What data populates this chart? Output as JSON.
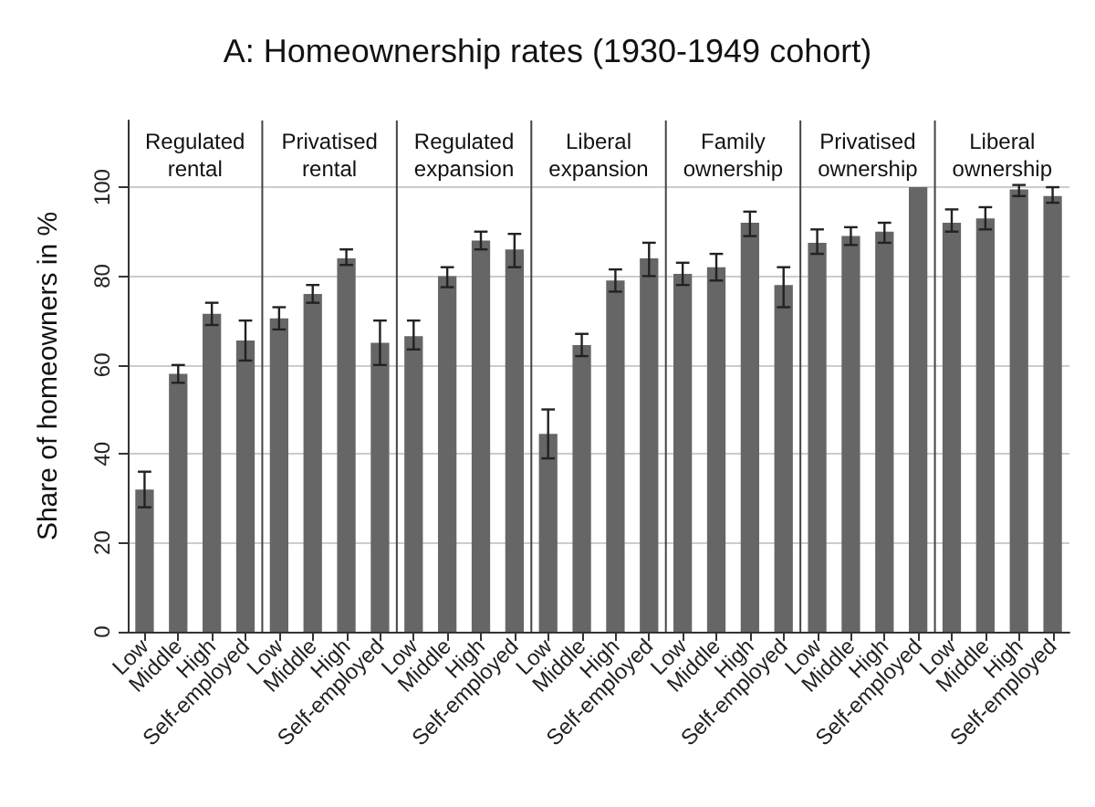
{
  "chart_data": {
    "type": "bar",
    "title": "A: Homeownership rates (1930-1949 cohort)",
    "ylabel": "Share of homeowners in %",
    "categories": [
      "Low",
      "Middle",
      "High",
      "Self-employed",
      "Low",
      "Middle",
      "High",
      "Self-employed",
      "Low",
      "Middle",
      "High",
      "Self-employed",
      "Low",
      "Middle",
      "High",
      "Self-employed",
      "Low",
      "Middle",
      "High",
      "Self-employed",
      "Low",
      "Middle",
      "High",
      "Self-employed",
      "Low",
      "Middle",
      "High",
      "Self-employed"
    ],
    "values": [
      32,
      58,
      71.5,
      65.5,
      70.5,
      76,
      84,
      65,
      66.5,
      80,
      88,
      86,
      44.5,
      64.5,
      79,
      84,
      80.5,
      82,
      92,
      78,
      87.5,
      89,
      90,
      100,
      92,
      93,
      99.5,
      98
    ],
    "errors": [
      [
        28,
        36
      ],
      [
        56,
        60
      ],
      [
        69,
        74
      ],
      [
        61,
        70
      ],
      [
        68,
        73
      ],
      [
        74,
        78
      ],
      [
        82.5,
        86
      ],
      [
        60,
        70
      ],
      [
        63.5,
        70
      ],
      [
        77.5,
        82
      ],
      [
        86,
        90
      ],
      [
        82,
        89.5
      ],
      [
        39,
        50
      ],
      [
        62,
        67
      ],
      [
        76.5,
        81.5
      ],
      [
        80,
        87.5
      ],
      [
        78,
        83
      ],
      [
        79,
        85
      ],
      [
        89,
        94.5
      ],
      [
        73,
        82
      ],
      [
        85,
        90.5
      ],
      [
        87,
        91
      ],
      [
        87.5,
        92
      ],
      null,
      [
        90,
        95
      ],
      [
        90.5,
        95.5
      ],
      [
        98,
        100.5
      ],
      [
        96.5,
        100
      ]
    ],
    "color": "#666666",
    "annotations": [
      "Regulated\nrental",
      "Privatised\nrental",
      "Regulated\nexpansion",
      "Liberal\nexpansion",
      "Family\nownership",
      "Privatised\nownership",
      "Liberal\nownership"
    ],
    "ylim": [
      0,
      115
    ],
    "yticks": [
      0,
      20,
      40,
      60,
      80,
      100
    ],
    "grid": "y"
  }
}
